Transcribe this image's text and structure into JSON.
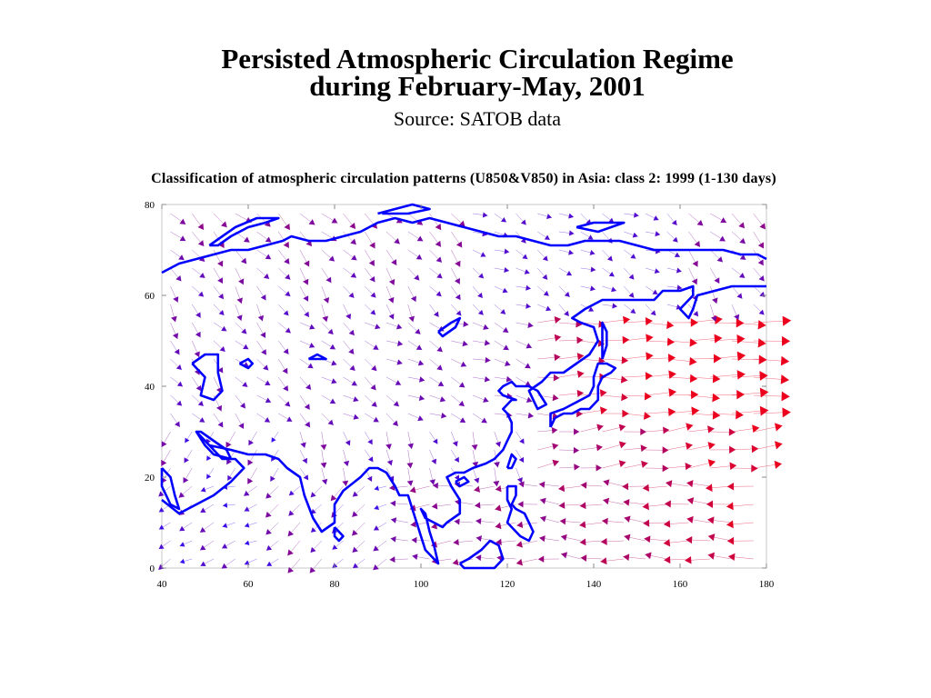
{
  "slide": {
    "title_line1": "Persisted Atmospheric Circulation Regime",
    "title_line2": "during February-May, 2001",
    "source": "Source: SATOB data"
  },
  "chart_data": {
    "type": "vector-field",
    "title": "Classification of atmospheric circulation patterns (U850&V850) in Asia: class 2: 1999 (1-130 days)",
    "xlim": [
      40,
      180
    ],
    "ylim": [
      0,
      80
    ],
    "xticks": [
      40,
      60,
      80,
      100,
      120,
      140,
      160,
      180
    ],
    "yticks": [
      0,
      20,
      40,
      60,
      80
    ],
    "x_tick_labels": [
      "40",
      "60",
      "80",
      "100",
      "120",
      "140",
      "160",
      "180"
    ],
    "y_tick_labels": [
      "0",
      "20",
      "40",
      "60",
      "80"
    ],
    "grid": false,
    "vector_grid": {
      "lon_start": 42,
      "lon_step": 5,
      "lat_start": 2,
      "lat_step": 4
    },
    "colors": {
      "weak": "#2020d0",
      "mid": "#800080",
      "strong": "#e00000",
      "coast": "#0000ff"
    },
    "coastlines": [
      {
        "name": "arctic-coast",
        "points": [
          [
            40,
            65
          ],
          [
            44,
            67
          ],
          [
            48,
            68
          ],
          [
            52,
            69
          ],
          [
            56,
            70
          ],
          [
            60,
            70
          ],
          [
            64,
            71
          ],
          [
            68,
            72
          ],
          [
            70,
            73
          ],
          [
            74,
            72
          ],
          [
            78,
            72
          ],
          [
            82,
            73
          ],
          [
            86,
            74
          ],
          [
            90,
            76
          ],
          [
            94,
            77
          ],
          [
            98,
            76
          ],
          [
            102,
            77
          ],
          [
            106,
            76
          ],
          [
            110,
            75
          ],
          [
            114,
            74
          ],
          [
            118,
            73
          ],
          [
            122,
            73
          ],
          [
            126,
            72
          ],
          [
            130,
            71
          ],
          [
            134,
            71
          ],
          [
            138,
            72
          ],
          [
            142,
            72
          ],
          [
            146,
            72
          ],
          [
            150,
            71
          ],
          [
            154,
            70
          ],
          [
            158,
            70
          ],
          [
            162,
            70
          ],
          [
            166,
            70
          ],
          [
            170,
            70
          ],
          [
            174,
            69
          ],
          [
            178,
            69
          ],
          [
            180,
            68
          ]
        ]
      },
      {
        "name": "novaya-zemlya",
        "points": [
          [
            51,
            71
          ],
          [
            54,
            73
          ],
          [
            57,
            75
          ],
          [
            62,
            77
          ],
          [
            67,
            77
          ],
          [
            64,
            76
          ],
          [
            60,
            75
          ],
          [
            56,
            73
          ],
          [
            53,
            71
          ],
          [
            51,
            71
          ]
        ]
      },
      {
        "name": "severnaya-zemlya",
        "points": [
          [
            90,
            78
          ],
          [
            94,
            79
          ],
          [
            98,
            80
          ],
          [
            102,
            79
          ],
          [
            97,
            78
          ],
          [
            91,
            78
          ]
        ]
      },
      {
        "name": "new-siberian-islands",
        "points": [
          [
            136,
            75
          ],
          [
            140,
            76
          ],
          [
            147,
            76
          ],
          [
            141,
            74
          ],
          [
            136,
            75
          ]
        ]
      },
      {
        "name": "caspian-sea",
        "points": [
          [
            47,
            45
          ],
          [
            50,
            47
          ],
          [
            53,
            47
          ],
          [
            53,
            43
          ],
          [
            54,
            39
          ],
          [
            52,
            37
          ],
          [
            49,
            38
          ],
          [
            50,
            42
          ],
          [
            47,
            45
          ]
        ]
      },
      {
        "name": "aral-sea",
        "points": [
          [
            58,
            45
          ],
          [
            60,
            46
          ],
          [
            61,
            45
          ],
          [
            60,
            44
          ],
          [
            58,
            45
          ]
        ]
      },
      {
        "name": "lake-balkhash",
        "points": [
          [
            74,
            46
          ],
          [
            76,
            47
          ],
          [
            78,
            46
          ],
          [
            76,
            46
          ],
          [
            74,
            46
          ]
        ]
      },
      {
        "name": "lake-baikal",
        "points": [
          [
            104,
            52
          ],
          [
            107,
            54
          ],
          [
            109,
            55
          ],
          [
            108,
            53
          ],
          [
            105,
            51
          ],
          [
            104,
            52
          ]
        ]
      },
      {
        "name": "south-asia-coast",
        "points": [
          [
            40,
            15
          ],
          [
            44,
            12
          ],
          [
            48,
            14
          ],
          [
            52,
            16
          ],
          [
            56,
            19
          ],
          [
            59,
            22
          ],
          [
            57,
            24
          ],
          [
            54,
            24
          ],
          [
            52,
            26
          ],
          [
            50,
            28
          ],
          [
            48,
            30
          ],
          [
            51,
            27
          ],
          [
            56,
            26
          ],
          [
            60,
            25
          ],
          [
            64,
            25
          ],
          [
            67,
            24
          ],
          [
            69,
            22
          ],
          [
            72,
            20
          ],
          [
            73,
            16
          ],
          [
            75,
            11
          ],
          [
            77,
            8
          ],
          [
            80,
            10
          ],
          [
            80,
            14
          ],
          [
            82,
            17
          ],
          [
            86,
            20
          ],
          [
            88,
            22
          ],
          [
            90,
            22
          ],
          [
            92,
            21
          ],
          [
            94,
            18
          ],
          [
            95,
            16
          ],
          [
            97,
            16
          ],
          [
            98,
            13
          ],
          [
            99,
            10
          ],
          [
            100,
            7
          ],
          [
            101,
            4
          ],
          [
            103,
            2
          ],
          [
            104,
            1
          ],
          [
            103,
            5
          ],
          [
            102,
            8
          ],
          [
            101,
            12
          ],
          [
            100,
            13
          ],
          [
            101,
            11
          ],
          [
            103,
            10
          ],
          [
            105,
            9
          ],
          [
            106,
            10
          ],
          [
            109,
            12
          ],
          [
            109,
            15
          ],
          [
            107,
            18
          ],
          [
            106,
            20
          ],
          [
            108,
            21
          ],
          [
            110,
            21
          ],
          [
            112,
            22
          ],
          [
            115,
            23
          ],
          [
            117,
            24
          ],
          [
            119,
            26
          ],
          [
            120,
            28
          ],
          [
            121,
            30
          ],
          [
            121,
            32
          ],
          [
            120,
            34
          ],
          [
            119,
            35
          ],
          [
            121,
            37
          ],
          [
            122,
            37
          ],
          [
            119,
            38
          ],
          [
            118,
            39
          ],
          [
            119,
            40
          ],
          [
            121,
            41
          ],
          [
            122,
            40
          ],
          [
            125,
            40
          ],
          [
            127,
            39
          ],
          [
            129,
            36
          ],
          [
            127,
            35
          ],
          [
            126,
            37
          ],
          [
            125,
            39
          ],
          [
            128,
            41
          ],
          [
            130,
            43
          ],
          [
            133,
            43
          ],
          [
            136,
            45
          ],
          [
            139,
            47
          ],
          [
            141,
            50
          ],
          [
            140,
            53
          ],
          [
            137,
            54
          ],
          [
            135,
            55
          ],
          [
            138,
            57
          ],
          [
            142,
            59
          ],
          [
            146,
            59
          ],
          [
            150,
            59
          ],
          [
            154,
            59
          ],
          [
            156,
            61
          ],
          [
            160,
            61
          ],
          [
            163,
            62
          ],
          [
            163,
            60
          ],
          [
            160,
            57
          ],
          [
            162,
            55
          ],
          [
            163,
            57
          ],
          [
            164,
            60
          ],
          [
            168,
            61
          ],
          [
            172,
            62
          ],
          [
            176,
            62
          ],
          [
            180,
            62
          ]
        ]
      },
      {
        "name": "sri-lanka",
        "points": [
          [
            80,
            9
          ],
          [
            81,
            8
          ],
          [
            82,
            7
          ],
          [
            81,
            6
          ],
          [
            80,
            7
          ],
          [
            80,
            9
          ]
        ]
      },
      {
        "name": "hainan",
        "points": [
          [
            108,
            19
          ],
          [
            110,
            20
          ],
          [
            111,
            19
          ],
          [
            109,
            18
          ],
          [
            108,
            19
          ]
        ]
      },
      {
        "name": "taiwan",
        "points": [
          [
            120,
            22
          ],
          [
            121,
            25
          ],
          [
            122,
            24
          ],
          [
            121,
            22
          ],
          [
            120,
            22
          ]
        ]
      },
      {
        "name": "japan",
        "points": [
          [
            130,
            31
          ],
          [
            131,
            33
          ],
          [
            133,
            34
          ],
          [
            135,
            34
          ],
          [
            137,
            35
          ],
          [
            139,
            35
          ],
          [
            141,
            37
          ],
          [
            141,
            40
          ],
          [
            142,
            42
          ],
          [
            144,
            43
          ],
          [
            145,
            44
          ],
          [
            143,
            45
          ],
          [
            141,
            45
          ],
          [
            140,
            42
          ],
          [
            140,
            40
          ],
          [
            139,
            38
          ],
          [
            137,
            37
          ],
          [
            135,
            36
          ],
          [
            133,
            35
          ],
          [
            130,
            34
          ],
          [
            130,
            31
          ]
        ]
      },
      {
        "name": "sakhalin",
        "points": [
          [
            142,
            46
          ],
          [
            143,
            49
          ],
          [
            143,
            52
          ],
          [
            142,
            54
          ],
          [
            142,
            50
          ],
          [
            142,
            46
          ]
        ]
      },
      {
        "name": "philippines",
        "points": [
          [
            120,
            18
          ],
          [
            122,
            18
          ],
          [
            122,
            16
          ],
          [
            121,
            14
          ],
          [
            122,
            13
          ],
          [
            124,
            12
          ],
          [
            125,
            10
          ],
          [
            126,
            8
          ],
          [
            125,
            6
          ],
          [
            123,
            7
          ],
          [
            122,
            8
          ],
          [
            120,
            10
          ],
          [
            121,
            13
          ],
          [
            120,
            15
          ],
          [
            120,
            18
          ]
        ]
      },
      {
        "name": "borneo",
        "points": [
          [
            109,
            1
          ],
          [
            111,
            2
          ],
          [
            114,
            4
          ],
          [
            116,
            6
          ],
          [
            118,
            5
          ],
          [
            119,
            2
          ],
          [
            117,
            0
          ],
          [
            110,
            0
          ],
          [
            109,
            1
          ]
        ]
      },
      {
        "name": "arabia-red-sea",
        "points": [
          [
            40,
            22
          ],
          [
            42,
            20
          ],
          [
            43,
            16
          ],
          [
            44,
            13
          ],
          [
            42,
            14
          ],
          [
            40,
            18
          ],
          [
            40,
            22
          ]
        ]
      },
      {
        "name": "persian-gulf",
        "points": [
          [
            48,
            30
          ],
          [
            50,
            27
          ],
          [
            52,
            25
          ],
          [
            56,
            24
          ],
          [
            55,
            26
          ],
          [
            52,
            28
          ],
          [
            49,
            30
          ],
          [
            48,
            30
          ]
        ]
      }
    ]
  }
}
